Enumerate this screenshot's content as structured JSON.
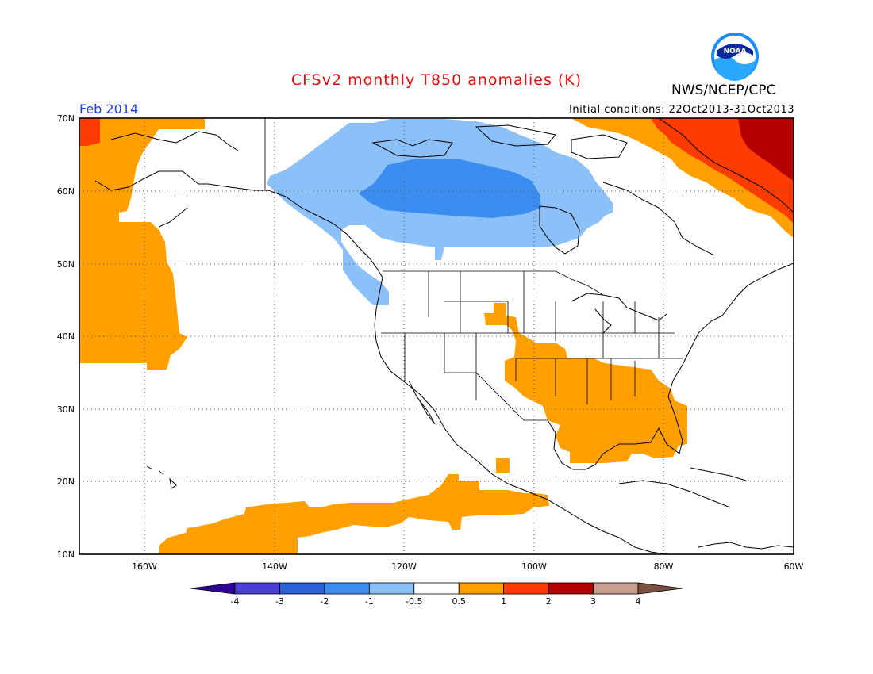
{
  "header": {
    "title": "CFSv2 monthly T850 anomalies (K)",
    "month": "Feb 2014",
    "initial_conditions": "Initial conditions: 22Oct2013-31Oct2013",
    "org": "NWS/NCEP/CPC",
    "logo_text": "NOAA"
  },
  "map": {
    "projection": "equirectangular",
    "lon_range": [
      -170,
      -60
    ],
    "lat_range": [
      10,
      70
    ],
    "lat_ticks": [
      "10N",
      "20N",
      "30N",
      "40N",
      "50N",
      "60N",
      "70N"
    ],
    "lon_ticks": [
      "160W",
      "140W",
      "120W",
      "100W",
      "80W",
      "60W"
    ],
    "grid": "dotted",
    "colors": {
      "neg3": "#2a62d8",
      "neg2": "#3b8ef0",
      "neg1": "#58a0f0",
      "neg05": "#8cc0f8",
      "pos05": "#ffa000",
      "pos1": "#ff3c00",
      "pos2": "#b40000",
      "pos3": "#c8a090"
    }
  },
  "colorbar": {
    "labels": [
      "-4",
      "-3",
      "-2",
      "-1",
      "-0.5",
      "0.5",
      "1",
      "2",
      "3",
      "4"
    ],
    "colors": [
      "#2d0096",
      "#4a40d8",
      "#2a62d8",
      "#3b8ef0",
      "#8cc0f8",
      "#ffffff",
      "#ffa000",
      "#ff3c00",
      "#b40000",
      "#c8a090",
      "#7a5040"
    ]
  }
}
